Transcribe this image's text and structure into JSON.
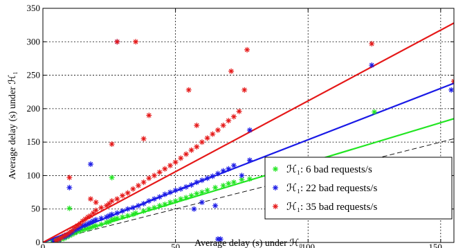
{
  "chart_data": {
    "type": "scatter",
    "xlabel": "Average delay (s) under ℋ₀",
    "ylabel": "Average delay (s) under ℋ₁",
    "xlim": [
      0,
      155
    ],
    "ylim": [
      0,
      350
    ],
    "x_ticks": [
      "0",
      "50",
      "100",
      "150"
    ],
    "y_ticks": [
      "0",
      "50",
      "100",
      "150",
      "200",
      "250",
      "300",
      "350"
    ],
    "grid": true,
    "legend_position": "bottom-right",
    "reference_line": {
      "style": "dashed",
      "color": "#000000",
      "points": [
        [
          0,
          0
        ],
        [
          155,
          155
        ]
      ]
    },
    "series": [
      {
        "name": "ℋ₁: 6 bad requests/s",
        "color": "#22e522",
        "fit": [
          [
            0,
            0
          ],
          [
            155,
            185
          ]
        ],
        "points": [
          [
            4,
            1
          ],
          [
            5,
            2
          ],
          [
            6,
            3
          ],
          [
            7,
            5
          ],
          [
            8,
            6
          ],
          [
            9,
            8
          ],
          [
            10,
            10
          ],
          [
            10,
            51
          ],
          [
            11,
            12
          ],
          [
            12,
            14
          ],
          [
            13,
            16
          ],
          [
            14,
            17
          ],
          [
            15,
            19
          ],
          [
            16,
            20
          ],
          [
            17,
            21
          ],
          [
            18,
            22
          ],
          [
            19,
            24
          ],
          [
            20,
            25
          ],
          [
            22,
            27
          ],
          [
            24,
            30
          ],
          [
            25,
            31
          ],
          [
            26,
            34
          ],
          [
            26,
            97
          ],
          [
            27,
            35
          ],
          [
            28,
            36
          ],
          [
            30,
            38
          ],
          [
            32,
            40
          ],
          [
            34,
            42
          ],
          [
            35,
            44
          ],
          [
            38,
            47
          ],
          [
            40,
            50
          ],
          [
            42,
            52
          ],
          [
            44,
            55
          ],
          [
            46,
            57
          ],
          [
            48,
            60
          ],
          [
            50,
            62
          ],
          [
            52,
            65
          ],
          [
            54,
            67
          ],
          [
            56,
            70
          ],
          [
            58,
            73
          ],
          [
            60,
            75
          ],
          [
            62,
            78
          ],
          [
            65,
            82
          ],
          [
            68,
            85
          ],
          [
            70,
            88
          ],
          [
            72,
            90
          ],
          [
            75,
            94
          ],
          [
            78,
            95
          ],
          [
            125,
            195
          ]
        ]
      },
      {
        "name": "ℋ₁: 22 bad requests/s",
        "color": "#1a1ae6",
        "fit": [
          [
            0,
            0
          ],
          [
            155,
            238
          ]
        ],
        "points": [
          [
            4,
            2
          ],
          [
            6,
            4
          ],
          [
            8,
            8
          ],
          [
            9,
            10
          ],
          [
            10,
            12
          ],
          [
            10,
            82
          ],
          [
            11,
            15
          ],
          [
            12,
            18
          ],
          [
            13,
            20
          ],
          [
            14,
            22
          ],
          [
            15,
            25
          ],
          [
            16,
            26
          ],
          [
            17,
            28
          ],
          [
            18,
            30
          ],
          [
            18,
            117
          ],
          [
            19,
            32
          ],
          [
            20,
            34
          ],
          [
            22,
            36
          ],
          [
            24,
            38
          ],
          [
            25,
            40
          ],
          [
            26,
            42
          ],
          [
            28,
            44
          ],
          [
            28,
            300
          ],
          [
            30,
            47
          ],
          [
            32,
            50
          ],
          [
            34,
            52
          ],
          [
            36,
            55
          ],
          [
            38,
            58
          ],
          [
            40,
            62
          ],
          [
            42,
            65
          ],
          [
            44,
            68
          ],
          [
            46,
            72
          ],
          [
            48,
            75
          ],
          [
            50,
            78
          ],
          [
            52,
            80
          ],
          [
            54,
            83
          ],
          [
            56,
            86
          ],
          [
            58,
            90
          ],
          [
            60,
            93
          ],
          [
            62,
            96
          ],
          [
            64,
            99
          ],
          [
            66,
            103
          ],
          [
            68,
            107
          ],
          [
            70,
            110
          ],
          [
            72,
            115
          ],
          [
            75,
            100
          ],
          [
            78,
            123
          ],
          [
            78,
            168
          ],
          [
            65,
            55
          ],
          [
            60,
            60
          ],
          [
            57,
            50
          ],
          [
            66,
            5
          ],
          [
            67,
            5
          ],
          [
            124,
            265
          ],
          [
            154,
            228
          ]
        ]
      },
      {
        "name": "ℋ₁: 35 bad requests/s",
        "color": "#e51919",
        "fit": [
          [
            0,
            0
          ],
          [
            155,
            328
          ]
        ],
        "points": [
          [
            5,
            3
          ],
          [
            6,
            5
          ],
          [
            7,
            7
          ],
          [
            8,
            10
          ],
          [
            9,
            12
          ],
          [
            10,
            15
          ],
          [
            10,
            97
          ],
          [
            11,
            18
          ],
          [
            12,
            22
          ],
          [
            13,
            25
          ],
          [
            14,
            28
          ],
          [
            15,
            32
          ],
          [
            16,
            35
          ],
          [
            17,
            38
          ],
          [
            18,
            40
          ],
          [
            18,
            65
          ],
          [
            19,
            44
          ],
          [
            20,
            48
          ],
          [
            20,
            60
          ],
          [
            22,
            52
          ],
          [
            24,
            55
          ],
          [
            25,
            58
          ],
          [
            26,
            62
          ],
          [
            26,
            147
          ],
          [
            28,
            65
          ],
          [
            28,
            300
          ],
          [
            30,
            70
          ],
          [
            32,
            74
          ],
          [
            34,
            80
          ],
          [
            35,
            300
          ],
          [
            36,
            85
          ],
          [
            38,
            90
          ],
          [
            38,
            155
          ],
          [
            40,
            96
          ],
          [
            40,
            190
          ],
          [
            42,
            100
          ],
          [
            44,
            105
          ],
          [
            46,
            110
          ],
          [
            48,
            115
          ],
          [
            50,
            120
          ],
          [
            52,
            126
          ],
          [
            54,
            132
          ],
          [
            55,
            228
          ],
          [
            56,
            138
          ],
          [
            58,
            143
          ],
          [
            58,
            175
          ],
          [
            60,
            150
          ],
          [
            62,
            156
          ],
          [
            64,
            162
          ],
          [
            66,
            168
          ],
          [
            68,
            175
          ],
          [
            70,
            182
          ],
          [
            71,
            256
          ],
          [
            72,
            188
          ],
          [
            74,
            196
          ],
          [
            76,
            228
          ],
          [
            77,
            288
          ],
          [
            124,
            297
          ],
          [
            155,
            241
          ]
        ]
      }
    ]
  }
}
